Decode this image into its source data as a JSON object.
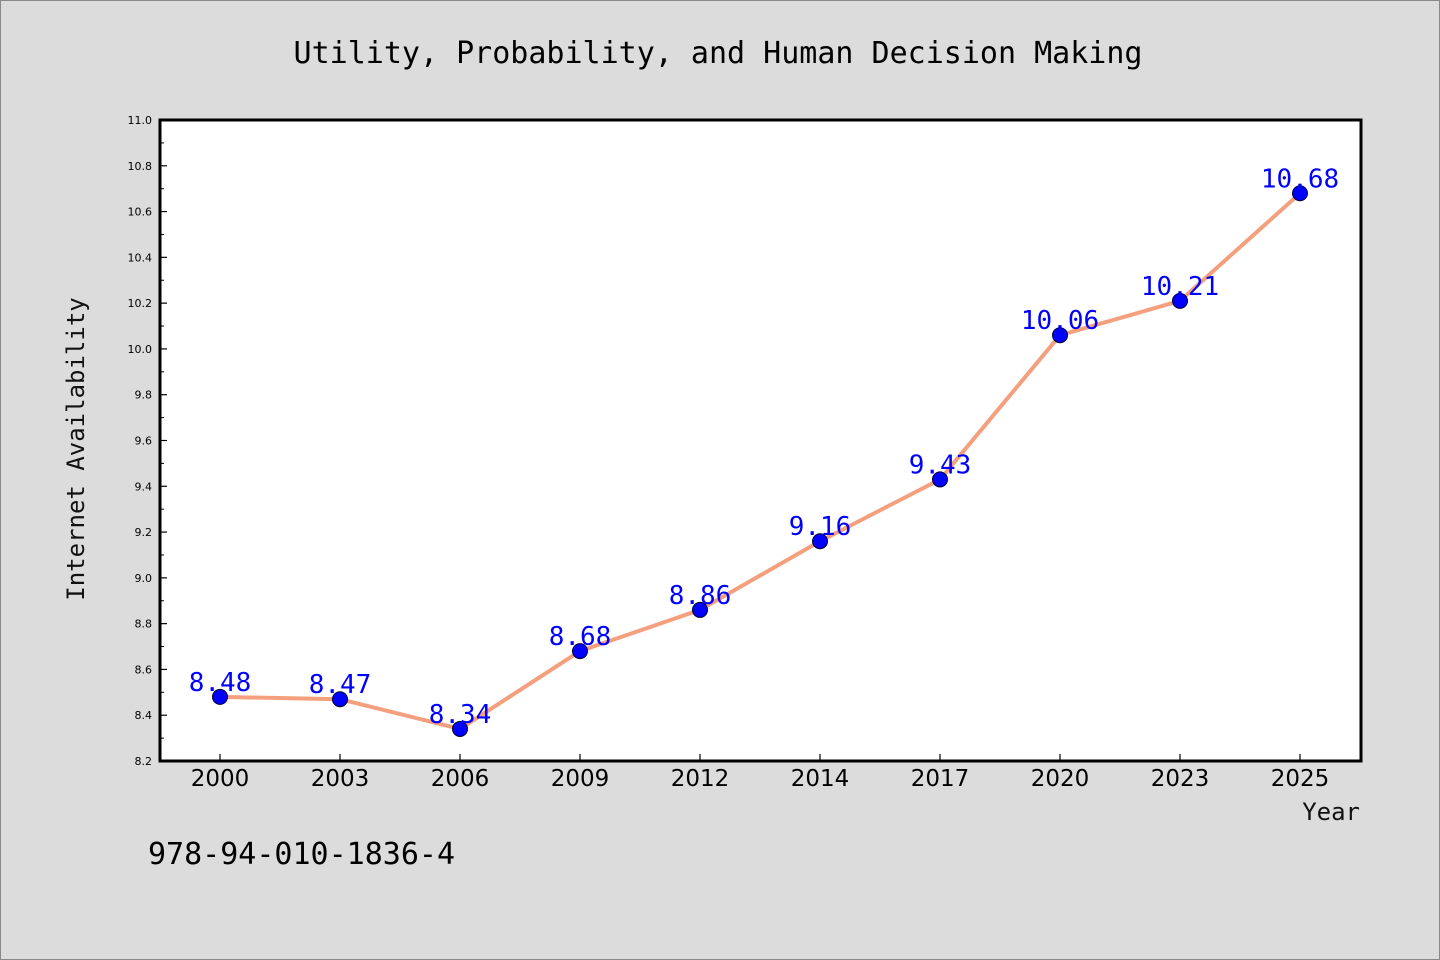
{
  "colors": {
    "background": "#dcdcdc",
    "plot_background": "#ffffff",
    "line": "#f4a07e",
    "marker": "#0000ff",
    "label": "#0000ff"
  },
  "footer": {
    "code": "978-94-010-1836-4"
  },
  "chart_data": {
    "type": "line",
    "title": "Utility, Probability, and Human Decision Making",
    "xlabel": "Year",
    "ylabel": "Internet Availability",
    "categories": [
      "2000",
      "2003",
      "2006",
      "2009",
      "2012",
      "2014",
      "2017",
      "2020",
      "2023",
      "2025"
    ],
    "series": [
      {
        "values": [
          8.48,
          8.47,
          8.34,
          8.68,
          8.86,
          9.16,
          9.43,
          10.06,
          10.21,
          10.68
        ],
        "labels": [
          "8.48",
          "8.47",
          "8.34",
          "8.68",
          "8.86",
          "9.16",
          "9.43",
          "10.06",
          "10.21",
          "10.68"
        ]
      }
    ],
    "ylim": [
      8.2,
      11.0
    ],
    "yticks": [
      "8.2",
      "8.4",
      "8.6",
      "8.8",
      "9.0",
      "9.2",
      "9.4",
      "9.6",
      "9.8",
      "10.0",
      "10.2",
      "10.4",
      "10.6",
      "10.8",
      "11.0"
    ],
    "grid": false,
    "legend": "none"
  }
}
